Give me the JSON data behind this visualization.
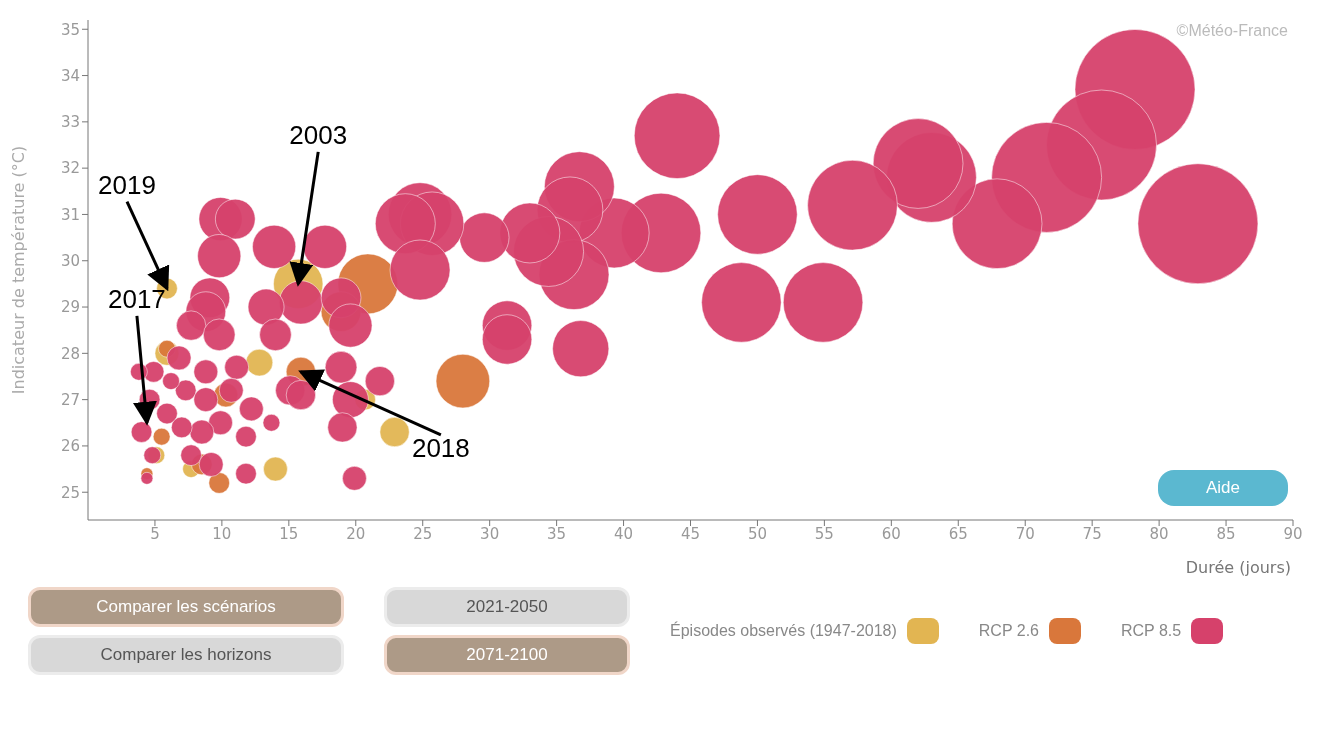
{
  "chart_data": {
    "type": "bubble",
    "xlabel": "Durée (jours)",
    "ylabel": "Indicateur de température (°C)",
    "xlim": [
      0,
      90
    ],
    "ylim": [
      24.4,
      35.2
    ],
    "xticks": [
      5,
      10,
      15,
      20,
      25,
      30,
      35,
      40,
      45,
      50,
      55,
      60,
      65,
      70,
      75,
      80,
      85,
      90
    ],
    "yticks": [
      25,
      26,
      27,
      28,
      29,
      30,
      31,
      32,
      33,
      34,
      35
    ],
    "grid": false,
    "legend": "bottom",
    "annotations": [
      "©Météo-France",
      "Comparer les scénarios",
      "Comparer les horizons",
      "2021-2050",
      "2071-2100",
      "Aide",
      {
        "text": "2019",
        "x": 5.9,
        "y": 29.4
      },
      {
        "text": "2003",
        "x": 15.7,
        "y": 29.5
      },
      {
        "text": "2017",
        "x": 4.4,
        "y": 26.5
      },
      {
        "text": "2018",
        "x": 15.9,
        "y": 27.6
      }
    ],
    "series": [
      {
        "name": "Épisodes observés (1947-2018)",
        "color": "#e2b552",
        "x": [
          15.7,
          5.9,
          12.8,
          22.9,
          14,
          5.9,
          5.1,
          7.7,
          20.7
        ],
        "values": [
          29.5,
          29.4,
          27.8,
          26.3,
          25.5,
          28,
          25.8,
          25.5,
          27
        ],
        "sizes": [
          0.17,
          0.03,
          0.05,
          0.06,
          0.04,
          0.04,
          0.02,
          0.02,
          0.03
        ]
      },
      {
        "name": "RCP 2.6",
        "color": "#d9773b",
        "x": [
          20.9,
          28,
          15.9,
          18.9,
          10.3,
          9.8,
          4.4,
          5.5,
          8.5,
          5.9
        ],
        "values": [
          29.5,
          27.4,
          27.6,
          28.9,
          27.1,
          25.2,
          25.4,
          26.2,
          25.6,
          28.1
        ],
        "sizes": [
          0.25,
          0.2,
          0.06,
          0.11,
          0.04,
          0.03,
          0.01,
          0.02,
          0.03,
          0.02
        ]
      },
      {
        "name": "RCP 8.5",
        "color": "#d6416b",
        "x": [
          82.9,
          78.2,
          75.7,
          71.6,
          67.9,
          63,
          62,
          57.1,
          54.9,
          50,
          48.8,
          44,
          42.8,
          39.3,
          36.7,
          36,
          36.3,
          34.4,
          33,
          29.6,
          36.8,
          31.3,
          31.3,
          24.8,
          25.7,
          23.7,
          24.8,
          17.7,
          13.9,
          9.9,
          11,
          9.8,
          15.9,
          18.9,
          19.6,
          13.3,
          9.1,
          8.8,
          7.7,
          9.8,
          14,
          18.9,
          21.8,
          19.6,
          19,
          19.9,
          15.1,
          15.9,
          6.8,
          4.9,
          3.8,
          4.6,
          4,
          4.8,
          4.4,
          5.9,
          7.3,
          8.8,
          11.1,
          10.7,
          8.8,
          9.9,
          8.5,
          7.7,
          9.2,
          7,
          11.8,
          12.2,
          11.8,
          6.2,
          13.7
        ],
        "values": [
          30.8,
          33.7,
          32.5,
          31.8,
          30.8,
          31.8,
          32.1,
          31.2,
          29.1,
          31,
          29.1,
          32.7,
          30.6,
          30.6,
          31.6,
          31.1,
          29.7,
          30.2,
          30.6,
          30.5,
          28.1,
          28.6,
          28.3,
          31,
          30.8,
          30.8,
          29.8,
          30.3,
          30.3,
          30.9,
          30.9,
          30.1,
          29.1,
          29.2,
          28.6,
          29,
          29.2,
          28.9,
          28.6,
          28.4,
          28.4,
          27.7,
          27.4,
          27,
          26.4,
          25.3,
          27.2,
          27.1,
          27.9,
          27.6,
          27.6,
          27,
          26.3,
          25.8,
          25.3,
          26.7,
          27.2,
          27.6,
          27.7,
          27.2,
          27,
          26.5,
          26.3,
          25.8,
          25.6,
          26.4,
          26.2,
          26.8,
          25.4,
          27.4,
          26.5
        ],
        "sizes": [
          1,
          1,
          0.84,
          0.84,
          0.56,
          0.56,
          0.56,
          0.56,
          0.44,
          0.44,
          0.44,
          0.51,
          0.44,
          0.34,
          0.34,
          0.3,
          0.34,
          0.34,
          0.25,
          0.17,
          0.22,
          0.17,
          0.17,
          0.28,
          0.28,
          0.25,
          0.25,
          0.13,
          0.13,
          0.13,
          0.11,
          0.13,
          0.13,
          0.11,
          0.13,
          0.09,
          0.11,
          0.11,
          0.06,
          0.07,
          0.07,
          0.07,
          0.06,
          0.09,
          0.06,
          0.04,
          0.06,
          0.06,
          0.04,
          0.03,
          0.02,
          0.03,
          0.03,
          0.02,
          0.01,
          0.03,
          0.03,
          0.04,
          0.04,
          0.04,
          0.04,
          0.04,
          0.04,
          0.03,
          0.04,
          0.03,
          0.03,
          0.04,
          0.03,
          0.02,
          0.02
        ]
      }
    ]
  }
}
